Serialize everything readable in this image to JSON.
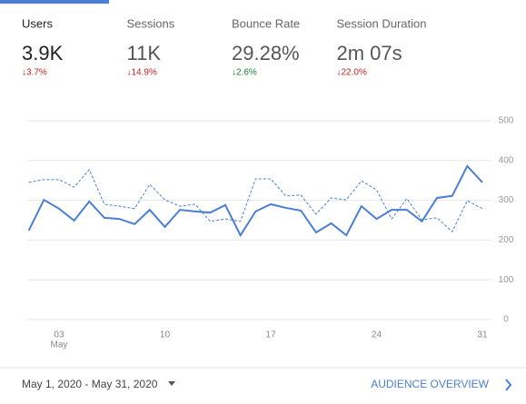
{
  "tabs": [
    {
      "label": "Users",
      "value": "3.9K",
      "change": "↓3.7%",
      "change_color": "#c5221f",
      "selected": true
    },
    {
      "label": "Sessions",
      "value": "11K",
      "change": "↓14.9%",
      "change_color": "#c5221f",
      "selected": false
    },
    {
      "label": "Bounce Rate",
      "value": "29.28%",
      "change": "↓2.6%",
      "change_color": "#188038",
      "selected": false
    },
    {
      "label": "Session Duration",
      "value": "2m 07s",
      "change": "↓22.0%",
      "change_color": "#c5221f",
      "selected": false
    }
  ],
  "chart_data": {
    "type": "line",
    "x": [
      1,
      2,
      3,
      4,
      5,
      6,
      7,
      8,
      9,
      10,
      11,
      12,
      13,
      14,
      15,
      16,
      17,
      18,
      19,
      20,
      21,
      22,
      23,
      24,
      25,
      26,
      27,
      28,
      29,
      30,
      31
    ],
    "series": [
      {
        "color": "#4a7fd4",
        "style": "solid",
        "values": [
          224,
          301,
          279,
          249,
          297,
          256,
          253,
          240,
          276,
          233,
          276,
          272,
          269,
          288,
          212,
          272,
          290,
          281,
          274,
          219,
          242,
          212,
          285,
          253,
          276,
          276,
          247,
          306,
          311,
          386,
          345
        ]
      },
      {
        "color": "#4a7fd4",
        "style": "dashed",
        "values": [
          345,
          352,
          352,
          333,
          377,
          290,
          285,
          279,
          340,
          301,
          285,
          290,
          247,
          253,
          247,
          354,
          354,
          311,
          313,
          265,
          306,
          301,
          349,
          326,
          253,
          304,
          251,
          256,
          221,
          299,
          279
        ]
      }
    ],
    "xlim": [
      0.9,
      31.6
    ],
    "xticks": [
      {
        "value": 3,
        "label": "03"
      },
      10,
      17,
      24,
      31
    ],
    "x_sublabel": "May",
    "ylim": [
      0,
      500
    ],
    "yticks": [
      0,
      100,
      200,
      300,
      400,
      500
    ],
    "grid": true
  },
  "footer": {
    "date_range": "May 1, 2020 - May 31, 2020",
    "link": "AUDIENCE OVERVIEW"
  }
}
